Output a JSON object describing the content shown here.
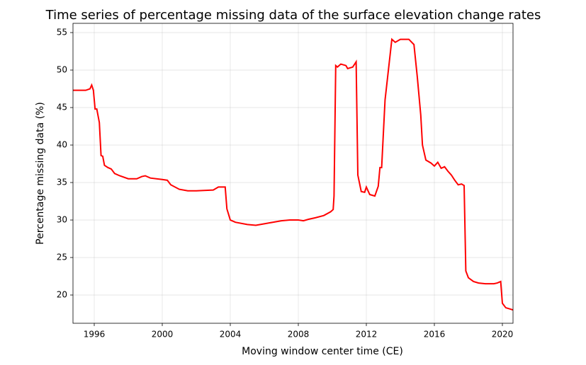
{
  "chart_data": {
    "type": "line",
    "title": "Time series of percentage missing data of the surface elevation change rates",
    "xlabel": "Moving window center time (CE)",
    "ylabel": "Percentage missing data (%)",
    "xlim": [
      1994.75,
      2020.625
    ],
    "ylim": [
      16.23,
      56.23
    ],
    "xticks": [
      1996,
      2000,
      2004,
      2008,
      2012,
      2016,
      2020
    ],
    "yticks": [
      20,
      25,
      30,
      35,
      40,
      45,
      50,
      55
    ],
    "grid": true,
    "series": [
      {
        "color": "#ff0000",
        "x": [
          1994.75,
          1995.5,
          1995.75,
          1995.85,
          1995.95,
          1996.05,
          1996.15,
          1996.3,
          1996.4,
          1996.5,
          1996.6,
          1996.8,
          1997.0,
          1997.2,
          1997.5,
          1998.0,
          1998.5,
          1998.8,
          1999.0,
          1999.3,
          2000.0,
          2000.3,
          2000.5,
          2001.0,
          2001.5,
          2002.0,
          2003.0,
          2003.3,
          2003.7,
          2003.8,
          2004.0,
          2004.3,
          2005.0,
          2005.5,
          2006.0,
          2006.5,
          2007.0,
          2007.5,
          2008.0,
          2008.3,
          2008.6,
          2009.0,
          2009.5,
          2009.9,
          2010.05,
          2010.1,
          2010.2,
          2010.3,
          2010.5,
          2010.8,
          2010.9,
          2011.2,
          2011.4,
          2011.5,
          2011.7,
          2011.9,
          2012.0,
          2012.2,
          2012.5,
          2012.7,
          2012.8,
          2012.9,
          2013.1,
          2013.5,
          2013.7,
          2014.0,
          2014.5,
          2014.8,
          2015.0,
          2015.2,
          2015.3,
          2015.5,
          2015.8,
          2016.0,
          2016.2,
          2016.4,
          2016.6,
          2016.8,
          2017.0,
          2017.2,
          2017.4,
          2017.6,
          2017.75,
          2017.85,
          2018.0,
          2018.3,
          2018.6,
          2019.0,
          2019.5,
          2019.7,
          2019.9,
          2020.0,
          2020.2,
          2020.5,
          2020.625
        ],
        "values": [
          47.3,
          47.3,
          47.5,
          48.0,
          47.3,
          44.8,
          44.8,
          43.0,
          38.6,
          38.5,
          37.3,
          37.0,
          36.8,
          36.2,
          35.9,
          35.5,
          35.5,
          35.8,
          35.9,
          35.6,
          35.4,
          35.3,
          34.7,
          34.1,
          33.9,
          33.9,
          34.0,
          34.4,
          34.4,
          31.5,
          30.0,
          29.7,
          29.4,
          29.3,
          29.5,
          29.7,
          29.9,
          30.0,
          30.0,
          29.9,
          30.1,
          30.3,
          30.6,
          31.1,
          31.4,
          33.2,
          50.6,
          50.4,
          50.8,
          50.6,
          50.2,
          50.4,
          51.1,
          36.0,
          33.8,
          33.7,
          34.4,
          33.4,
          33.2,
          34.5,
          37.0,
          37.0,
          46,
          54.1,
          53.7,
          54.1,
          54.1,
          53.4,
          49,
          44,
          40,
          38,
          37.6,
          37.2,
          37.7,
          36.9,
          37.1,
          36.5,
          36.0,
          35.3,
          34.7,
          34.8,
          34.6,
          23.2,
          22.3,
          21.8,
          21.6,
          21.5,
          21.5,
          21.6,
          21.8,
          18.9,
          18.3,
          18.1,
          18.0
        ]
      }
    ]
  }
}
